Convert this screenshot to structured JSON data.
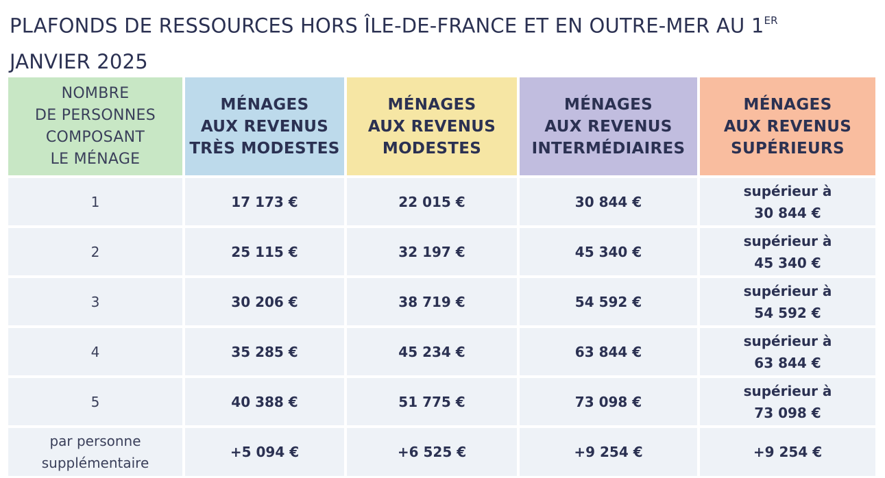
{
  "title": {
    "text": "PLAFONDS DE RESSOURCES HORS ÎLE-DE-FRANCE ET EN OUTRE-MER AU 1",
    "sup": "ER",
    "line2": "JANVIER 2025"
  },
  "headers": [
    "NOMBRE\nDE PERSONNES\nCOMPOSANT\nLE MÉNAGE",
    "MÉNAGES\nAUX REVENUS\nTRÈS MODESTES",
    "MÉNAGES\nAUX REVENUS\nMODESTES",
    "MÉNAGES\nAUX REVENUS\nINTERMÉDIAIRES",
    "MÉNAGES\nAUX REVENUS\nSUPÉRIEURS"
  ],
  "header_colors": [
    "#c8e7c5",
    "#bddaeb",
    "#f6e6a4",
    "#c1bddf",
    "#f9bd9f"
  ],
  "rows": [
    {
      "label": "1",
      "tres_modestes": "17 173 €",
      "modestes": "22 015 €",
      "intermediaires": "30 844 €",
      "superieurs": "supérieur à\n30 844 €"
    },
    {
      "label": "2",
      "tres_modestes": "25 115 €",
      "modestes": "32 197 €",
      "intermediaires": "45 340 €",
      "superieurs": "supérieur à\n45 340 €"
    },
    {
      "label": "3",
      "tres_modestes": "30 206 €",
      "modestes": "38 719 €",
      "intermediaires": "54 592 €",
      "superieurs": "supérieur à\n54 592 €"
    },
    {
      "label": "4",
      "tres_modestes": "35 285 €",
      "modestes": "45 234 €",
      "intermediaires": "63 844 €",
      "superieurs": "supérieur à\n63 844 €"
    },
    {
      "label": "5",
      "tres_modestes": "40 388 €",
      "modestes": "51 775 €",
      "intermediaires": "73 098 €",
      "superieurs": "supérieur à\n73 098 €"
    },
    {
      "label": "par personne\nsupplémentaire",
      "tres_modestes": "+5 094 €",
      "modestes": "+6 525 €",
      "intermediaires": "+9 254 €",
      "superieurs": "+9 254 €"
    }
  ]
}
